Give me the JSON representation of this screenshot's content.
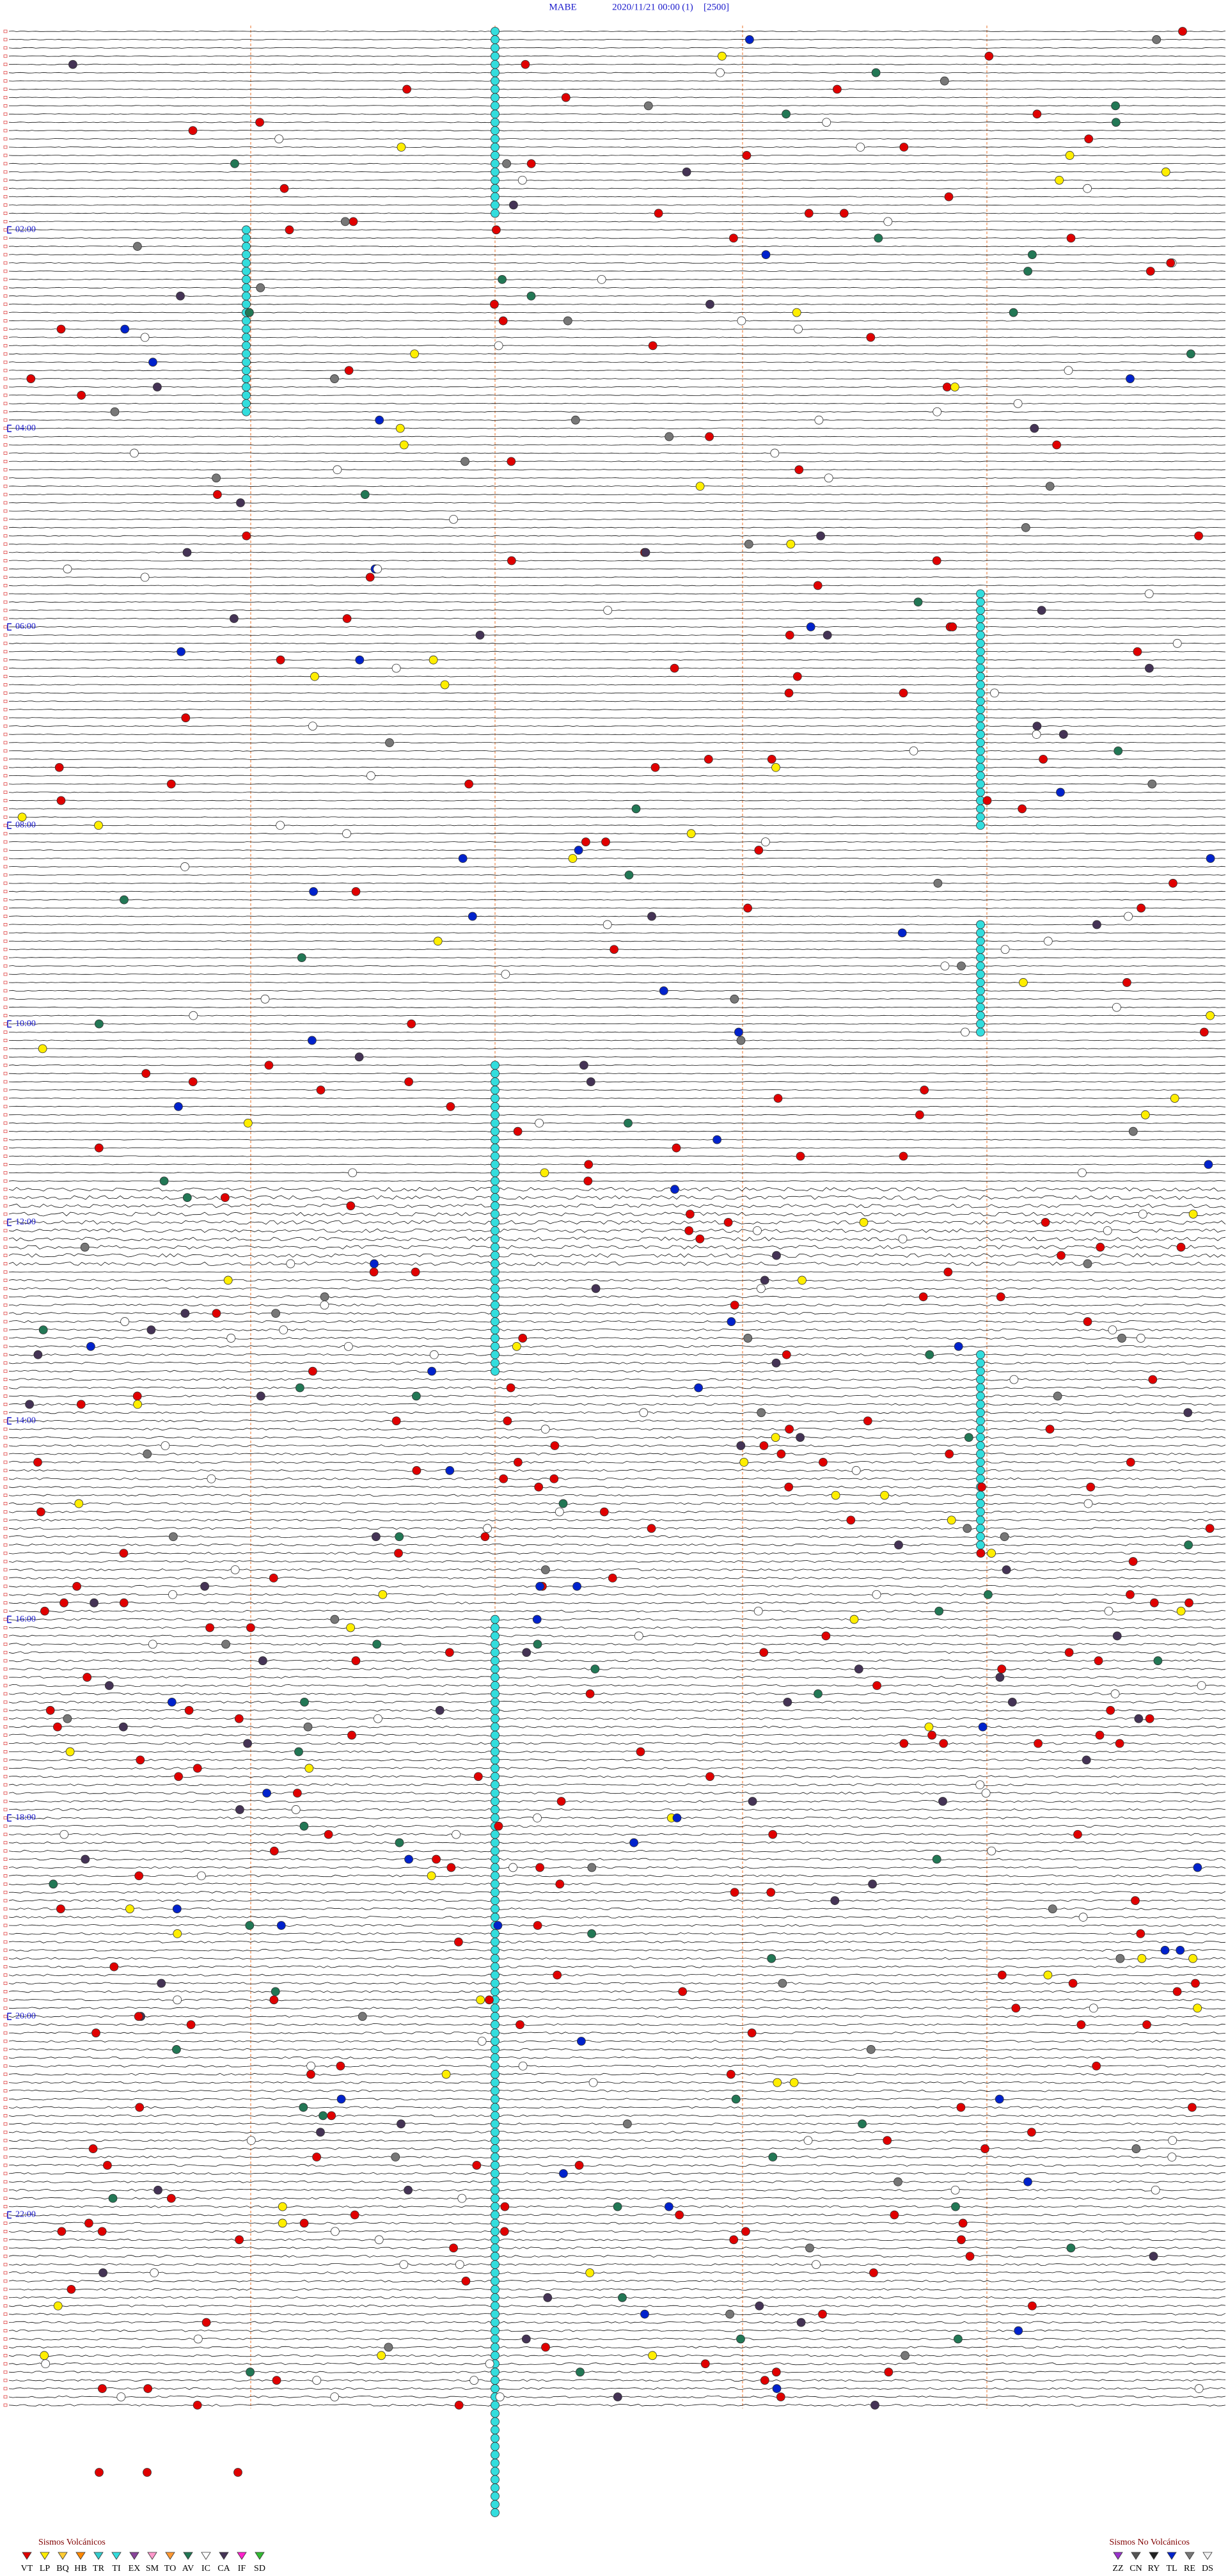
{
  "header": {
    "station": "MABE",
    "datetime": "2020/11/21 00:00",
    "channel": "(1)",
    "scale": "[2500]"
  },
  "hour_labels": [
    "02:00",
    "04:00",
    "06:00",
    "08:00",
    "10:00",
    "12:00",
    "14:00",
    "16:00",
    "18:00",
    "20:00",
    "22:00"
  ],
  "legend": {
    "volcanic": {
      "title": "Sismos Volcánicos",
      "items": [
        {
          "code": "VT",
          "color": "#e00000"
        },
        {
          "code": "LP",
          "color": "#ffee00"
        },
        {
          "code": "BQ",
          "color": "#ffcc33"
        },
        {
          "code": "HB",
          "color": "#ff8800"
        },
        {
          "code": "TR",
          "color": "#33cccc"
        },
        {
          "code": "TI",
          "color": "#33dddd"
        },
        {
          "code": "EX",
          "color": "#884499"
        },
        {
          "code": "SM",
          "color": "#ff99cc"
        },
        {
          "code": "TO",
          "color": "#ff9933"
        },
        {
          "code": "AV",
          "color": "#227755"
        },
        {
          "code": "IC",
          "color": "#ffffff"
        },
        {
          "code": "CA",
          "color": "#443355"
        },
        {
          "code": "IF",
          "color": "#ff22cc"
        },
        {
          "code": "SD",
          "color": "#33bb33"
        }
      ]
    },
    "non_volcanic": {
      "title": "Sismos No Volcánicos",
      "items": [
        {
          "code": "ZZ",
          "color": "#9933cc"
        },
        {
          "code": "CN",
          "color": "#555555"
        },
        {
          "code": "RY",
          "color": "#222222"
        },
        {
          "code": "TL",
          "color": "#0022cc"
        },
        {
          "code": "RE",
          "color": "#777777"
        },
        {
          "code": "DS",
          "color": "#f4f4f4"
        }
      ]
    }
  }
}
